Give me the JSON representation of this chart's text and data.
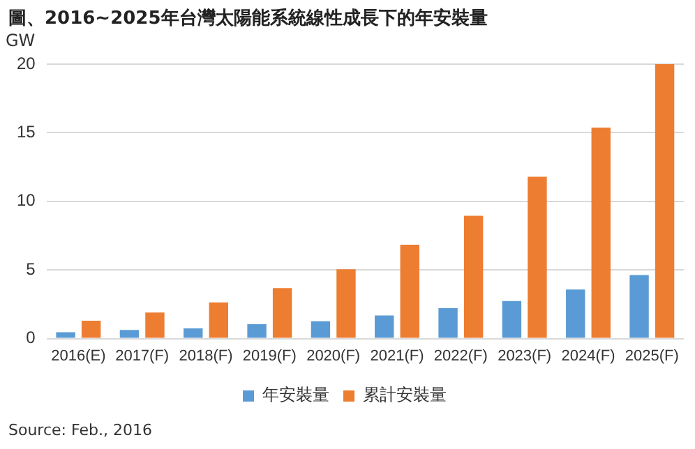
{
  "chart_data": {
    "type": "bar",
    "title": "圖、2016~2025年台灣太陽能系統線性成長下的年安裝量",
    "ylabel": "GW",
    "categories": [
      "2016(E)",
      "2017(F)",
      "2018(F)",
      "2019(F)",
      "2020(F)",
      "2021(F)",
      "2022(F)",
      "2023(F)",
      "2024(F)",
      "2025(F)"
    ],
    "series": [
      {
        "name": "年安裝量",
        "color": "#5b9bd5",
        "values": [
          0.46,
          0.63,
          0.74,
          1.05,
          1.26,
          1.68,
          2.21,
          2.74,
          3.58,
          4.63
        ]
      },
      {
        "name": "累計安裝量",
        "color": "#ed7d31",
        "values": [
          1.3,
          1.9,
          2.63,
          3.68,
          5.05,
          6.84,
          8.95,
          11.79,
          15.37,
          20
        ]
      }
    ],
    "ylim": [
      0,
      20
    ],
    "yticks": [
      0,
      5,
      10,
      15,
      20
    ],
    "grid": "y",
    "legend": "bottom",
    "annotations": [
      "Source: Feb., 2016"
    ]
  }
}
